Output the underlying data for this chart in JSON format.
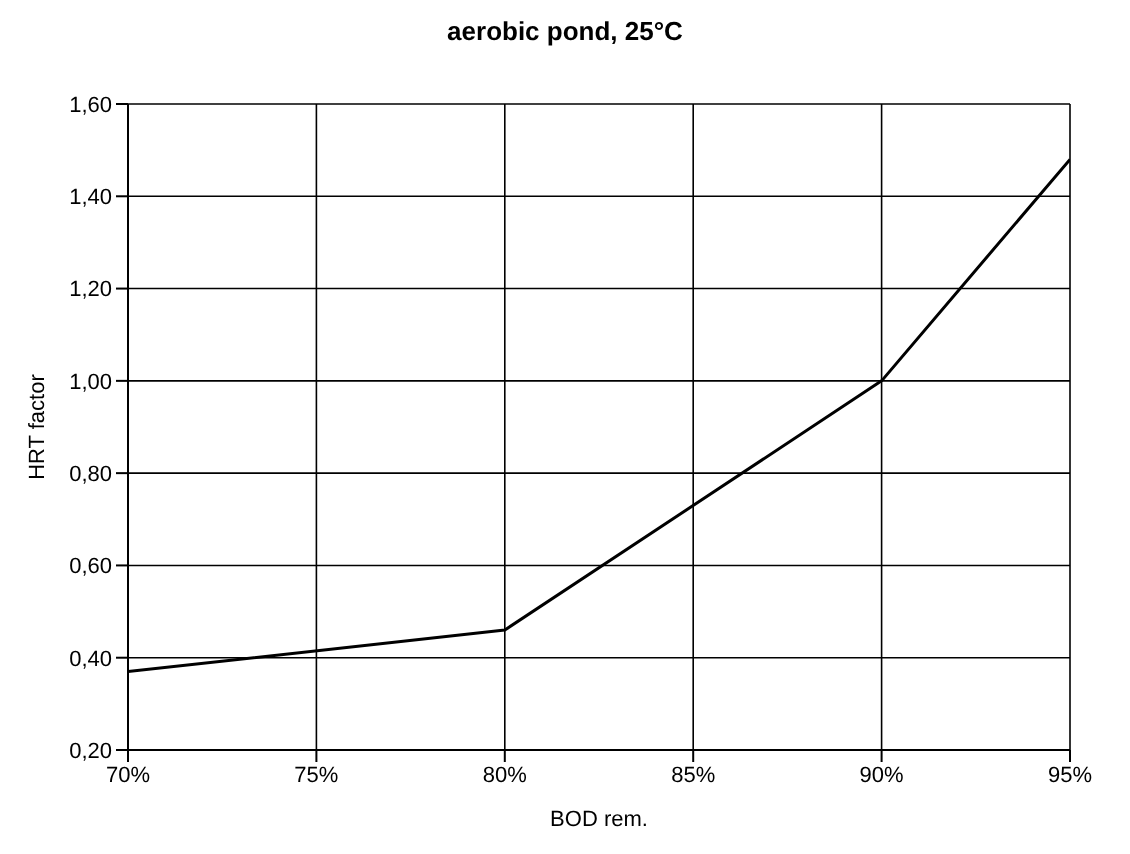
{
  "chart_data": {
    "type": "line",
    "title": "aerobic pond, 25°C",
    "xlabel": "BOD rem.",
    "ylabel": "HRT factor",
    "x": [
      70,
      80,
      90,
      95
    ],
    "series": [
      {
        "color": "#000000",
        "values": [
          0.37,
          0.46,
          1.0,
          1.48
        ]
      }
    ],
    "xlim": [
      70,
      95
    ],
    "xticks": [
      {
        "value": 70,
        "label": "70%"
      },
      {
        "value": 75,
        "label": "75%"
      },
      {
        "value": 80,
        "label": "80%"
      },
      {
        "value": 85,
        "label": "85%"
      },
      {
        "value": 90,
        "label": "90%"
      },
      {
        "value": 95,
        "label": "95%"
      }
    ],
    "ylim": [
      0.2,
      1.6
    ],
    "yticks": [
      {
        "value": 0.2,
        "label": "0,20"
      },
      {
        "value": 0.4,
        "label": "0,40"
      },
      {
        "value": 0.6,
        "label": "0,60"
      },
      {
        "value": 0.8,
        "label": "0,80"
      },
      {
        "value": 1.0,
        "label": "1,00"
      },
      {
        "value": 1.2,
        "label": "1,20"
      },
      {
        "value": 1.4,
        "label": "1,40"
      },
      {
        "value": 1.6,
        "label": "1,60"
      }
    ],
    "grid": true,
    "marker": "none",
    "line_style": "solid"
  }
}
